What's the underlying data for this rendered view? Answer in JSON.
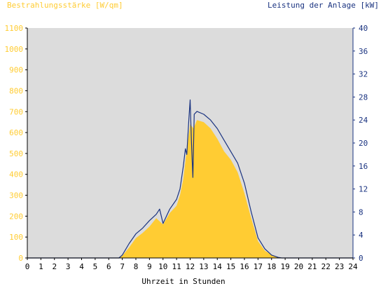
{
  "chart_data": {
    "type": "area",
    "ylabel_left": "Bestrahlungsstärke [W/qm]",
    "ylabel_right": "Leistung der Anlage [kW]",
    "xlabel": "Uhrzeit in Stunden",
    "xlim": [
      0,
      24
    ],
    "ylim_left": [
      0,
      1100
    ],
    "ylim_right": [
      0,
      40
    ],
    "x_ticks": [
      "0",
      "1",
      "2",
      "3",
      "4",
      "5",
      "6",
      "7",
      "8",
      "9",
      "10",
      "11",
      "12",
      "13",
      "14",
      "15",
      "16",
      "17",
      "18",
      "19",
      "20",
      "21",
      "22",
      "23",
      "24"
    ],
    "y_left_ticks": [
      "0",
      "100",
      "200",
      "300",
      "400",
      "500",
      "600",
      "700",
      "800",
      "900",
      "1000",
      "1100"
    ],
    "y_right_ticks": [
      "0",
      "4",
      "8",
      "12",
      "16",
      "20",
      "24",
      "28",
      "32",
      "36",
      "40"
    ],
    "grid": false,
    "colors": {
      "irradiance_fill": "#ffcc33",
      "power_line": "#1a3380",
      "plot_background": "#dcdcdc",
      "left_axis_text": "#ffcc33",
      "right_axis_text": "#1a3380",
      "x_axis_text": "#000000"
    },
    "series": [
      {
        "name": "Bestrahlungsstärke [W/qm]",
        "axis": "left",
        "style": "area",
        "x": [
          0,
          6.75,
          7.0,
          7.5,
          8.0,
          8.5,
          9.0,
          9.5,
          10.0,
          10.5,
          11.0,
          11.25,
          11.5,
          11.75,
          12.0,
          12.25,
          12.5,
          13.0,
          13.5,
          14.0,
          14.5,
          15.0,
          15.5,
          16.0,
          16.5,
          17.0,
          17.5,
          18.0,
          18.5,
          18.75,
          24
        ],
        "values": [
          0,
          0,
          10,
          50,
          95,
          120,
          150,
          190,
          160,
          215,
          250,
          300,
          380,
          520,
          640,
          620,
          660,
          650,
          620,
          570,
          510,
          470,
          410,
          310,
          190,
          80,
          35,
          15,
          3,
          0,
          0
        ]
      },
      {
        "name": "Leistung der Anlage [kW]",
        "axis": "right",
        "style": "line",
        "x": [
          0,
          6.75,
          7.0,
          7.5,
          8.0,
          8.5,
          9.0,
          9.5,
          9.75,
          10.0,
          10.5,
          11.0,
          11.25,
          11.5,
          11.65,
          11.75,
          11.9,
          12.0,
          12.1,
          12.2,
          12.3,
          12.5,
          13.0,
          13.5,
          14.0,
          14.5,
          15.0,
          15.5,
          16.0,
          16.5,
          17.0,
          17.5,
          18.0,
          18.5,
          18.75,
          24
        ],
        "values": [
          0,
          0,
          0.5,
          2.5,
          4.2,
          5.2,
          6.5,
          7.6,
          8.5,
          6.0,
          8.5,
          10.2,
          12,
          16,
          19,
          18,
          24,
          27.5,
          20,
          14,
          25,
          25.5,
          25,
          24,
          22.5,
          20.5,
          18.5,
          16.5,
          13,
          8,
          3.5,
          1.6,
          0.5,
          0.1,
          0,
          0
        ]
      }
    ]
  }
}
